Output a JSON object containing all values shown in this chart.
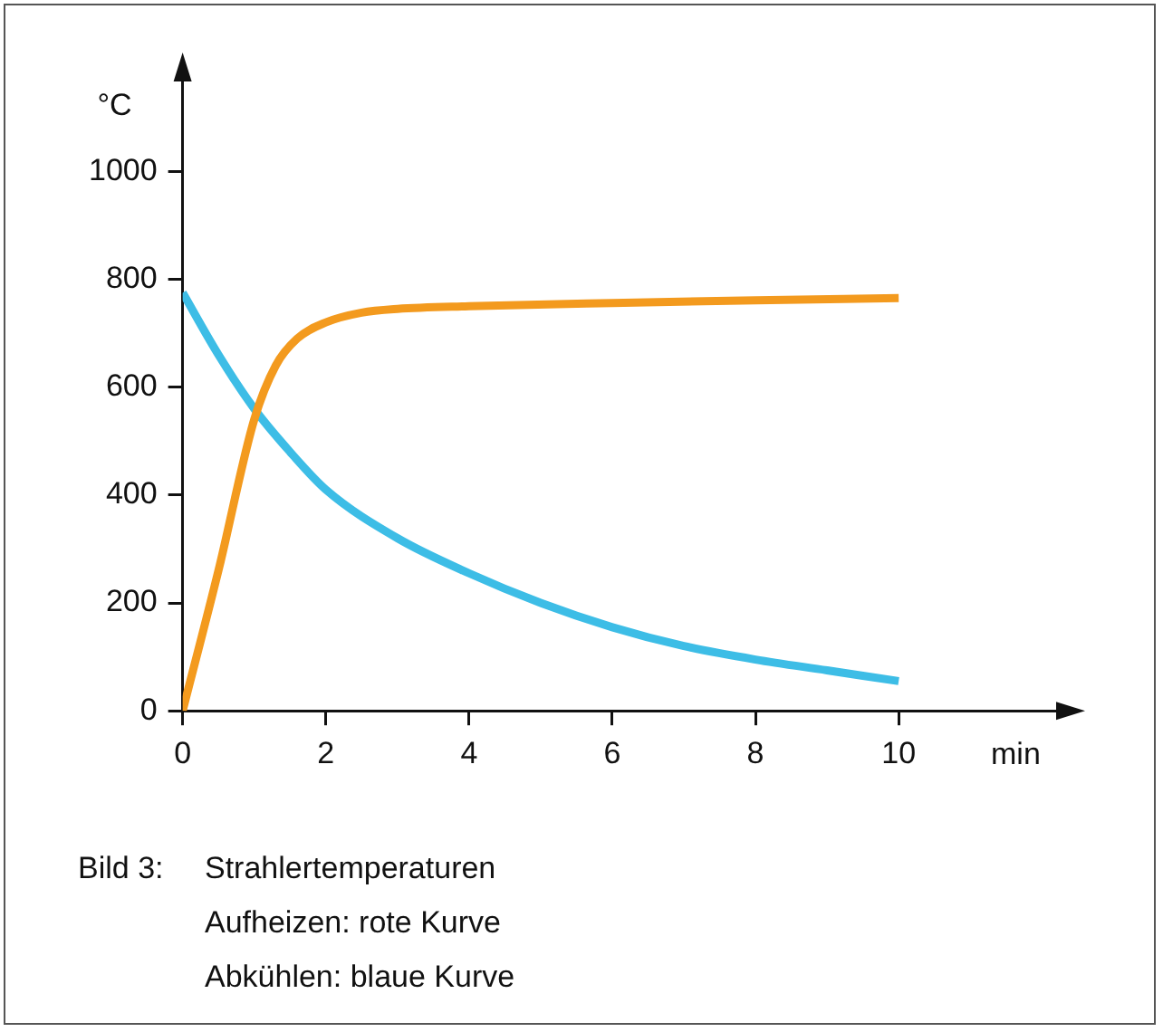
{
  "chart_data": {
    "type": "line",
    "xlabel": "min",
    "ylabel": "°C",
    "xlim": [
      0,
      12.3
    ],
    "ylim": [
      0,
      1180
    ],
    "xticks": [
      0,
      2,
      4,
      6,
      8,
      10
    ],
    "yticks": [
      0,
      200,
      400,
      600,
      800,
      1000
    ],
    "marker": "none",
    "series": [
      {
        "color": "#f39a1e",
        "x": [
          0,
          0.5,
          1,
          1.3,
          1.6,
          2,
          2.5,
          3,
          4,
          6,
          8,
          10
        ],
        "values": [
          0,
          260,
          540,
          640,
          690,
          720,
          738,
          745,
          750,
          756,
          761,
          765
        ]
      },
      {
        "color": "#3dbde6",
        "x": [
          0,
          0.5,
          1,
          1.5,
          2,
          3,
          4,
          5,
          6,
          7,
          8,
          9,
          10
        ],
        "values": [
          775,
          660,
          560,
          480,
          410,
          320,
          255,
          200,
          155,
          120,
          95,
          75,
          55
        ]
      }
    ],
    "annotations": [
      "Bild 3:",
      "Strahlertemperaturen",
      "Aufheizen: rote Kurve",
      "Abkühlen: blaue Kurve"
    ]
  }
}
